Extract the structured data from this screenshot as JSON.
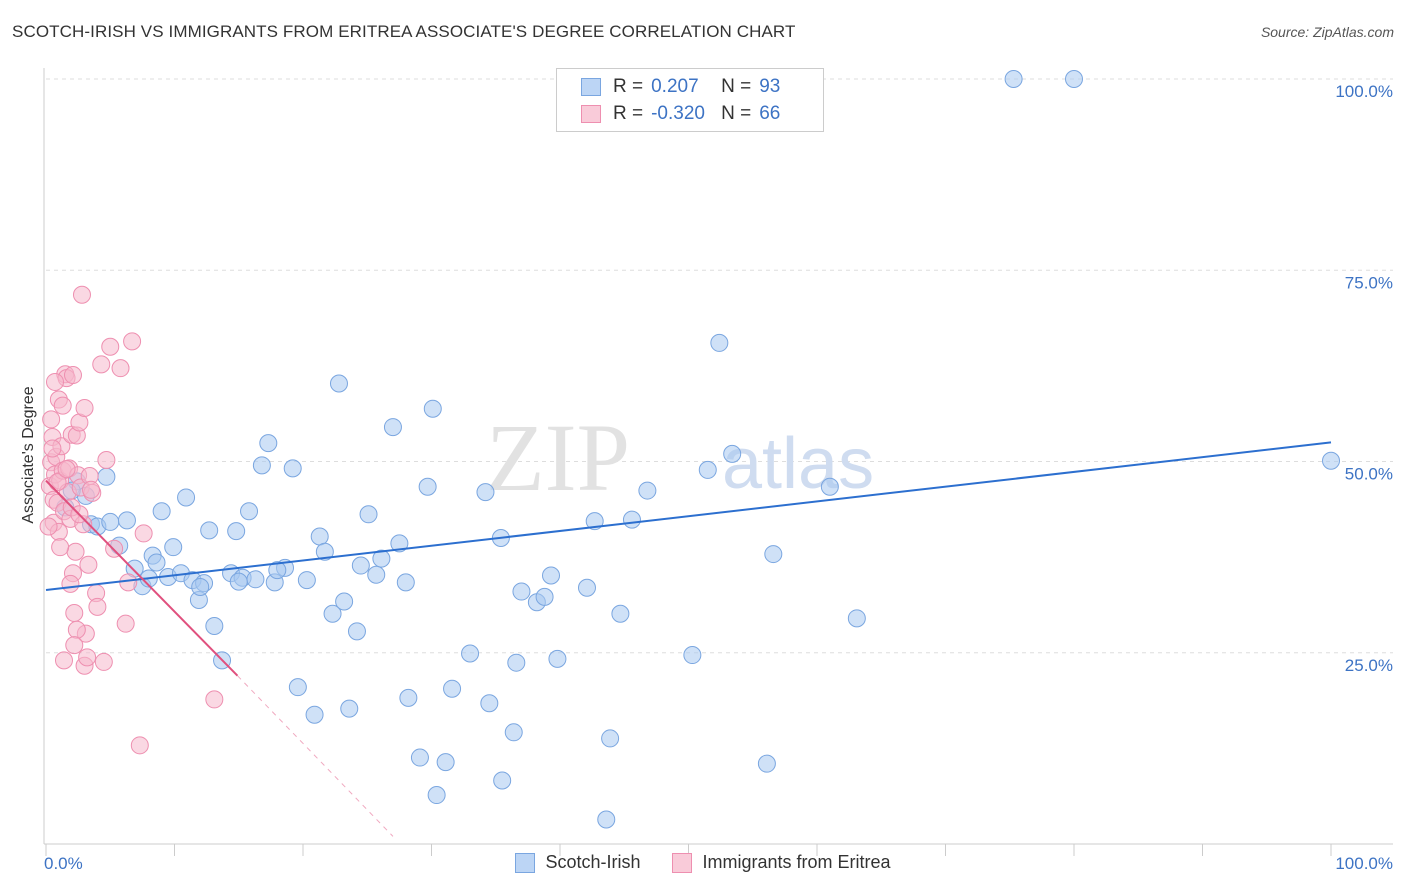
{
  "title": "SCOTCH-IRISH VS IMMIGRANTS FROM ERITREA ASSOCIATE'S DEGREE CORRELATION CHART",
  "source": "Source: ZipAtlas.com",
  "watermark": {
    "zip": "ZIP",
    "atlas": "atlas"
  },
  "legend": {
    "rows": [
      {
        "r_label": "R =",
        "r_value": "0.207",
        "n_label": "N =",
        "n_value": "93"
      },
      {
        "r_label": "R =",
        "r_value": "-0.320",
        "n_label": "N =",
        "n_value": "66"
      }
    ]
  },
  "colors": {
    "blue_fill": "#a8c8f0",
    "blue_stroke": "#7aa6e0",
    "blue_line": "#2c6fcf",
    "pink_fill": "#f6b8cc",
    "pink_stroke": "#ee8fb0",
    "pink_line": "#e0507e",
    "tick_text": "#3d73c4",
    "grid": "#dddddd"
  },
  "chart_data": {
    "type": "scatter",
    "title": "SCOTCH-IRISH VS IMMIGRANTS FROM ERITREA ASSOCIATE'S DEGREE CORRELATION CHART",
    "xlabel": "",
    "ylabel": "Associate's Degree",
    "xlim": [
      0,
      100
    ],
    "ylim": [
      0,
      100
    ],
    "x_tick_labels": [
      "0.0%",
      "100.0%"
    ],
    "y_tick_labels": [
      "25.0%",
      "50.0%",
      "75.0%",
      "100.0%"
    ],
    "y_tick_values": [
      25,
      50,
      75,
      100
    ],
    "grid": true,
    "legend_position": "bottom",
    "series": [
      {
        "name": "Scotch-Irish",
        "color": "#a8c8f0",
        "R": 0.207,
        "N": 93,
        "trend": {
          "x": [
            0,
            100
          ],
          "y": [
            33.2,
            52.5
          ]
        },
        "points": [
          [
            2.4,
            47.4
          ],
          [
            3.1,
            45.5
          ],
          [
            3.5,
            41.8
          ],
          [
            4.0,
            41.5
          ],
          [
            4.7,
            48.0
          ],
          [
            5.0,
            42.1
          ],
          [
            5.7,
            39.0
          ],
          [
            6.9,
            36.0
          ],
          [
            7.5,
            33.7
          ],
          [
            8.0,
            34.7
          ],
          [
            8.3,
            37.7
          ],
          [
            9.0,
            43.5
          ],
          [
            9.5,
            34.9
          ],
          [
            9.9,
            38.8
          ],
          [
            10.5,
            35.4
          ],
          [
            10.9,
            45.3
          ],
          [
            11.4,
            34.5
          ],
          [
            11.9,
            31.9
          ],
          [
            12.3,
            34.1
          ],
          [
            12.7,
            41.0
          ],
          [
            13.1,
            28.5
          ],
          [
            13.7,
            24.0
          ],
          [
            14.4,
            35.4
          ],
          [
            14.8,
            40.9
          ],
          [
            15.3,
            34.8
          ],
          [
            15.8,
            43.5
          ],
          [
            16.3,
            34.6
          ],
          [
            16.8,
            49.5
          ],
          [
            17.3,
            52.4
          ],
          [
            17.8,
            34.2
          ],
          [
            18.6,
            36.1
          ],
          [
            19.2,
            49.1
          ],
          [
            19.6,
            20.5
          ],
          [
            20.3,
            34.5
          ],
          [
            20.9,
            16.9
          ],
          [
            21.3,
            40.2
          ],
          [
            21.7,
            38.2
          ],
          [
            22.3,
            30.1
          ],
          [
            22.8,
            60.2
          ],
          [
            23.2,
            31.7
          ],
          [
            23.6,
            17.7
          ],
          [
            24.2,
            27.8
          ],
          [
            25.1,
            43.1
          ],
          [
            25.7,
            35.2
          ],
          [
            26.1,
            37.3
          ],
          [
            27.0,
            54.5
          ],
          [
            27.5,
            39.3
          ],
          [
            28.0,
            34.2
          ],
          [
            28.2,
            19.1
          ],
          [
            29.1,
            11.3
          ],
          [
            29.7,
            46.7
          ],
          [
            30.1,
            56.9
          ],
          [
            30.4,
            6.4
          ],
          [
            31.1,
            10.7
          ],
          [
            31.6,
            20.3
          ],
          [
            33.0,
            24.9
          ],
          [
            34.2,
            46.0
          ],
          [
            34.5,
            18.4
          ],
          [
            35.4,
            40.0
          ],
          [
            35.5,
            8.3
          ],
          [
            36.4,
            14.6
          ],
          [
            36.6,
            23.7
          ],
          [
            38.2,
            31.6
          ],
          [
            38.8,
            32.3
          ],
          [
            39.3,
            35.1
          ],
          [
            39.8,
            24.2
          ],
          [
            42.1,
            33.5
          ],
          [
            42.7,
            42.2
          ],
          [
            43.6,
            3.2
          ],
          [
            43.9,
            13.8
          ],
          [
            44.7,
            30.1
          ],
          [
            45.6,
            42.4
          ],
          [
            46.8,
            46.2
          ],
          [
            50.3,
            24.7
          ],
          [
            51.5,
            48.9
          ],
          [
            52.4,
            65.5
          ],
          [
            53.4,
            51.0
          ],
          [
            56.1,
            10.5
          ],
          [
            56.6,
            37.9
          ],
          [
            61.0,
            46.7
          ],
          [
            63.1,
            29.5
          ],
          [
            75.3,
            100.0
          ],
          [
            80.0,
            100.0
          ],
          [
            100.0,
            50.1
          ],
          [
            1.5,
            44.0
          ],
          [
            2.0,
            46.2
          ],
          [
            6.3,
            42.3
          ],
          [
            8.6,
            36.8
          ],
          [
            12.0,
            33.6
          ],
          [
            15.0,
            34.3
          ],
          [
            18.0,
            35.8
          ],
          [
            24.5,
            36.4
          ],
          [
            37.0,
            33.0
          ]
        ]
      },
      {
        "name": "Immigrants from Eritrea",
        "color": "#f6b8cc",
        "R": -0.32,
        "N": 66,
        "trend": {
          "x": [
            0,
            14.9
          ],
          "y": [
            47.5,
            22.0
          ]
        },
        "trend_extension": {
          "x": [
            14.9,
            27.0
          ],
          "y": [
            22.0,
            1.0
          ]
        },
        "points": [
          [
            0.3,
            46.8
          ],
          [
            0.4,
            49.9
          ],
          [
            0.5,
            53.2
          ],
          [
            0.6,
            42.0
          ],
          [
            0.6,
            45.0
          ],
          [
            0.7,
            48.3
          ],
          [
            0.8,
            50.6
          ],
          [
            0.9,
            44.6
          ],
          [
            1.0,
            58.1
          ],
          [
            1.0,
            40.8
          ],
          [
            1.1,
            47.5
          ],
          [
            1.2,
            52.0
          ],
          [
            1.3,
            57.3
          ],
          [
            1.3,
            48.8
          ],
          [
            1.4,
            43.5
          ],
          [
            1.5,
            61.4
          ],
          [
            1.6,
            60.9
          ],
          [
            1.7,
            46.0
          ],
          [
            1.8,
            49.1
          ],
          [
            1.9,
            42.5
          ],
          [
            2.0,
            53.5
          ],
          [
            2.1,
            61.3
          ],
          [
            2.1,
            35.4
          ],
          [
            2.2,
            30.2
          ],
          [
            2.3,
            38.2
          ],
          [
            2.4,
            53.4
          ],
          [
            2.5,
            48.2
          ],
          [
            2.6,
            55.1
          ],
          [
            2.7,
            46.6
          ],
          [
            2.8,
            71.8
          ],
          [
            2.9,
            41.8
          ],
          [
            3.0,
            23.3
          ],
          [
            3.1,
            27.5
          ],
          [
            3.2,
            24.4
          ],
          [
            3.3,
            36.5
          ],
          [
            3.4,
            48.1
          ],
          [
            3.6,
            45.9
          ],
          [
            3.9,
            32.8
          ],
          [
            4.3,
            62.7
          ],
          [
            4.5,
            23.8
          ],
          [
            4.7,
            50.2
          ],
          [
            5.0,
            65.0
          ],
          [
            5.3,
            38.6
          ],
          [
            5.8,
            62.2
          ],
          [
            6.2,
            28.8
          ],
          [
            6.4,
            34.2
          ],
          [
            6.7,
            65.7
          ],
          [
            7.3,
            12.9
          ],
          [
            7.6,
            40.6
          ],
          [
            13.1,
            18.9
          ],
          [
            0.2,
            41.5
          ],
          [
            0.4,
            55.5
          ],
          [
            0.9,
            47.3
          ],
          [
            1.6,
            49.0
          ],
          [
            2.0,
            44.0
          ],
          [
            2.6,
            43.1
          ],
          [
            3.5,
            46.3
          ],
          [
            0.7,
            60.4
          ],
          [
            1.9,
            34.0
          ],
          [
            2.4,
            28.0
          ],
          [
            4.0,
            31.0
          ],
          [
            1.1,
            38.8
          ],
          [
            0.5,
            51.7
          ],
          [
            3.0,
            57.0
          ],
          [
            1.4,
            24.0
          ],
          [
            2.2,
            26.0
          ]
        ]
      }
    ]
  },
  "axis": {
    "ylabel": "Associate's Degree",
    "x_left": "0.0%",
    "x_right": "100.0%"
  },
  "bottom_legend": [
    {
      "label": "Scotch-Irish"
    },
    {
      "label": "Immigrants from Eritrea"
    }
  ]
}
